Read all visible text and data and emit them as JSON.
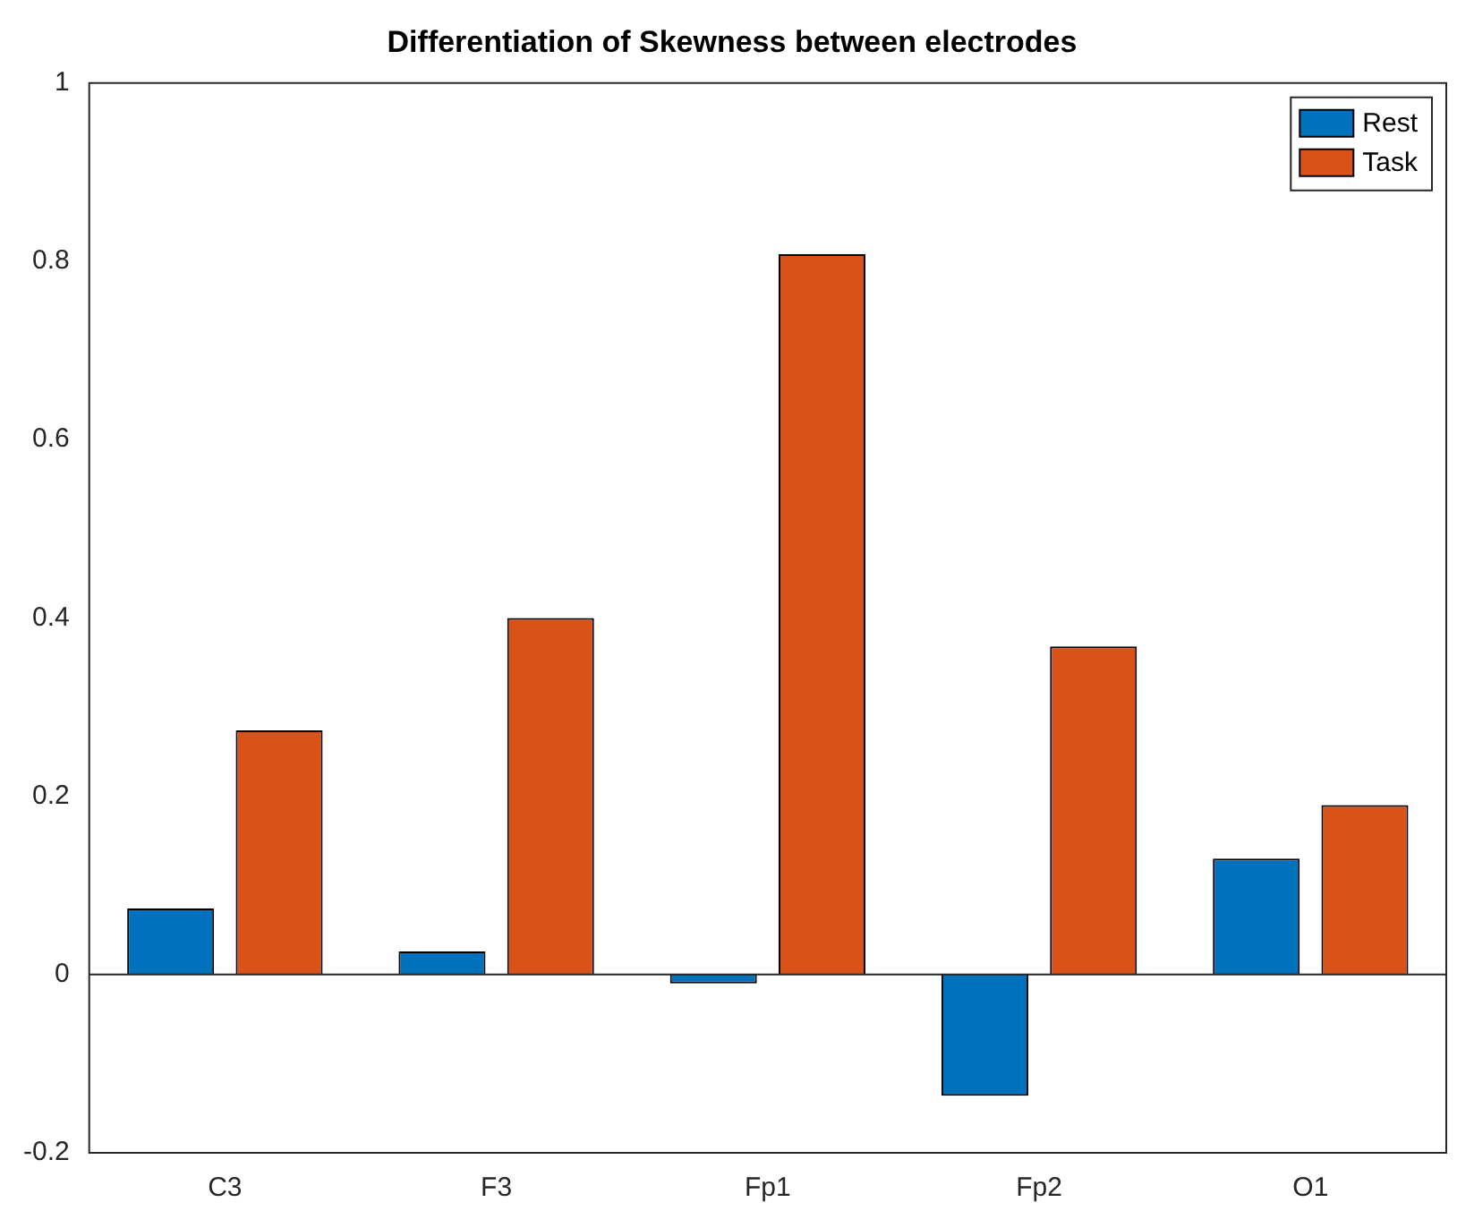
{
  "chart_data": {
    "type": "bar",
    "title": "Differentiation of Skewness between electrodes",
    "categories": [
      "C3",
      "F3",
      "Fp1",
      "Fp2",
      "O1"
    ],
    "series": [
      {
        "name": "Rest",
        "color": "#0072bd",
        "values": [
          0.074,
          0.026,
          -0.01,
          -0.136,
          0.13
        ]
      },
      {
        "name": "Task",
        "color": "#d95319",
        "values": [
          0.274,
          0.4,
          0.808,
          0.368,
          0.19
        ]
      }
    ],
    "ylim": [
      -0.2,
      1
    ],
    "yticks": [
      -0.2,
      0,
      0.2,
      0.4,
      0.6,
      0.8,
      1
    ],
    "grid": false,
    "legend": "top right",
    "ref_lines": [
      {
        "axis": "y",
        "value": 0,
        "color": "#262626"
      }
    ]
  }
}
